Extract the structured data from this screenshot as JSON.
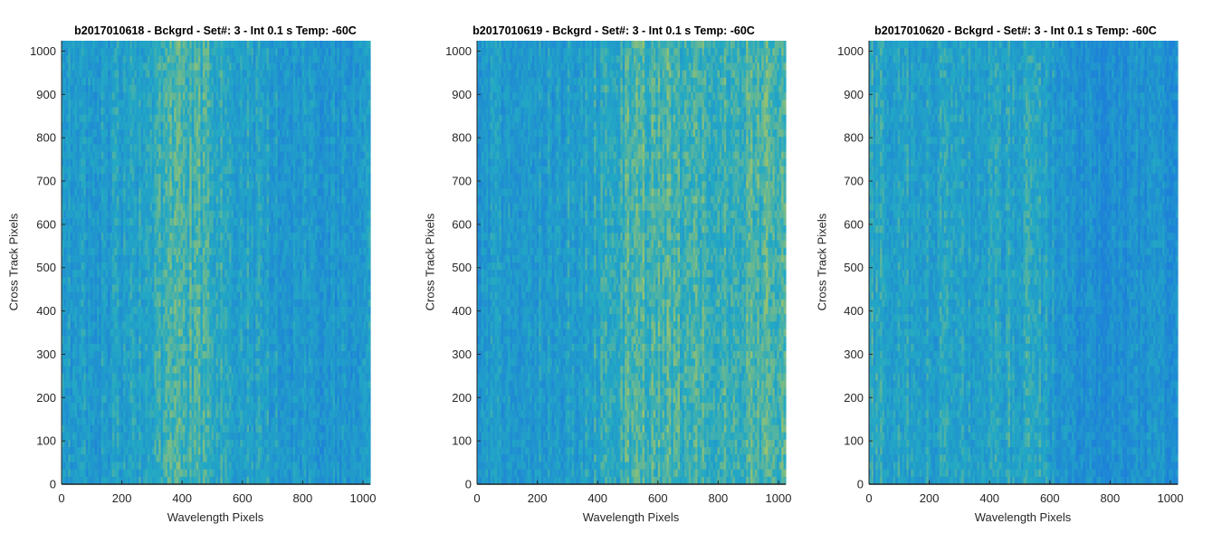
{
  "chart_data": [
    {
      "type": "heatmap",
      "title": "b2017010618 - Bckgrd - Set#: 3 - Int 0.1 s Temp: -60C",
      "xlabel": "Wavelength Pixels",
      "ylabel": "Cross Track Pixels",
      "xlim": [
        0,
        1024
      ],
      "ylim": [
        0,
        1024
      ],
      "xticks": [
        0,
        200,
        400,
        600,
        800,
        1000
      ],
      "yticks": [
        0,
        100,
        200,
        300,
        400,
        500,
        600,
        700,
        800,
        900,
        1000
      ],
      "xtick_labels": [
        "0",
        "200",
        "400",
        "600",
        "800",
        "1000"
      ],
      "ytick_labels": [
        "0",
        "100",
        "200",
        "300",
        "400",
        "500",
        "600",
        "700",
        "800",
        "900",
        "1000"
      ],
      "colormap": "parula",
      "colors": {
        "low": "#1e81d8",
        "mid": "#23a9c4",
        "high": "#b7c95a"
      },
      "column_intensity_profile": {
        "x": [
          0,
          100,
          200,
          300,
          400,
          450,
          500,
          600,
          700,
          800,
          900,
          1024
        ],
        "level": [
          0.35,
          0.32,
          0.38,
          0.5,
          0.62,
          0.6,
          0.5,
          0.42,
          0.34,
          0.3,
          0.28,
          0.3
        ]
      },
      "grid": false
    },
    {
      "type": "heatmap",
      "title": "b2017010619 - Bckgrd - Set#: 3 - Int 0.1 s Temp: -60C",
      "xlabel": "Wavelength Pixels",
      "ylabel": "Cross Track Pixels",
      "xlim": [
        0,
        1024
      ],
      "ylim": [
        0,
        1024
      ],
      "xticks": [
        0,
        200,
        400,
        600,
        800,
        1000
      ],
      "yticks": [
        0,
        100,
        200,
        300,
        400,
        500,
        600,
        700,
        800,
        900,
        1000
      ],
      "xtick_labels": [
        "0",
        "200",
        "400",
        "600",
        "800",
        "1000"
      ],
      "ytick_labels": [
        "0",
        "100",
        "200",
        "300",
        "400",
        "500",
        "600",
        "700",
        "800",
        "900",
        "1000"
      ],
      "colormap": "parula",
      "colors": {
        "low": "#1e81d8",
        "mid": "#23a9c4",
        "high": "#b7c95a"
      },
      "column_intensity_profile": {
        "x": [
          0,
          100,
          200,
          300,
          400,
          500,
          600,
          700,
          800,
          900,
          1024
        ],
        "level": [
          0.3,
          0.28,
          0.32,
          0.36,
          0.45,
          0.6,
          0.65,
          0.58,
          0.55,
          0.62,
          0.6
        ]
      },
      "grid": false
    },
    {
      "type": "heatmap",
      "title": "b2017010620 - Bckgrd - Set#: 3 - Int 0.1 s Temp: -60C",
      "xlabel": "Wavelength Pixels",
      "ylabel": "Cross Track Pixels",
      "xlim": [
        0,
        1024
      ],
      "ylim": [
        0,
        1024
      ],
      "xticks": [
        0,
        200,
        400,
        600,
        800,
        1000
      ],
      "yticks": [
        0,
        100,
        200,
        300,
        400,
        500,
        600,
        700,
        800,
        900,
        1000
      ],
      "xtick_labels": [
        "0",
        "200",
        "400",
        "600",
        "800",
        "1000"
      ],
      "ytick_labels": [
        "0",
        "100",
        "200",
        "300",
        "400",
        "500",
        "600",
        "700",
        "800",
        "900",
        "1000"
      ],
      "colormap": "parula",
      "colors": {
        "low": "#1e81d8",
        "mid": "#23a9c4",
        "high": "#b7c95a"
      },
      "column_intensity_profile": {
        "x": [
          0,
          100,
          200,
          300,
          400,
          500,
          560,
          600,
          700,
          800,
          900,
          1024
        ],
        "level": [
          0.45,
          0.42,
          0.4,
          0.36,
          0.4,
          0.45,
          0.46,
          0.35,
          0.22,
          0.15,
          0.2,
          0.25
        ]
      },
      "grid": false
    }
  ]
}
